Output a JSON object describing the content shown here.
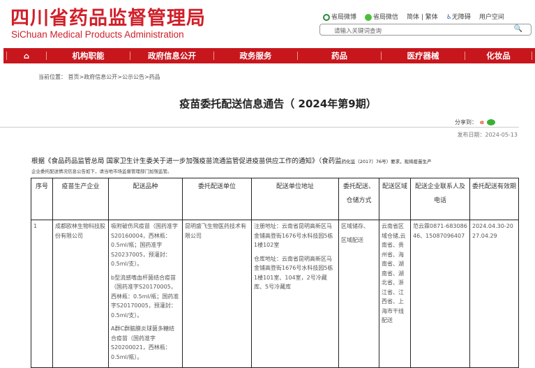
{
  "header": {
    "logo_cn": "四川省药品监督管理局",
    "logo_en": "SiChuan Medical Products Administration",
    "links": [
      "省局微博",
      "省局微信",
      "简体 | 繁体",
      "无障碍",
      "用户空间"
    ],
    "search_placeholder": "请输入关键词查询"
  },
  "nav": {
    "items": [
      "机构职能",
      "政府信息公开",
      "政务服务",
      "药品",
      "医疗器械",
      "化妆品"
    ]
  },
  "breadcrumb": "当前位置： 首页>政府信息公开>公示公告>药品",
  "article": {
    "title": "疫苗委托配送信息通告（ 2024年第9期）",
    "share_label": "分享到：",
    "date": "发布日期：2024-05-13",
    "intro_main": "根据《食品药品监管总局 国家卫生计生委关于进一步加强疫苗流通监管促进疫苗供应工作的通知》（食药监",
    "intro_small": "药化监（2017）76号）要求，现将疫苗生产",
    "intro_line2": "企业委托配送情况信息公告如下，请当地市场监督管理部门加强监管。"
  },
  "table": {
    "headers": [
      "序号",
      "疫苗生产企业",
      "配送品种",
      "委托配送单位",
      "配送单位地址",
      "委托配送、仓储方式",
      "配送区域",
      "配送企业联系人及电话",
      "委托配送有效期"
    ],
    "rows": [
      {
        "no": "1",
        "maker": "成都欧林生物科技股份有限公司",
        "varieties": [
          "吸附破伤风疫苗（国药准字S20160004，西林瓶：0.5ml/瓶；国药准字S20237005，预灌封：0.5ml/支）。",
          "b型流感嗜血杆菌结合疫苗（国药准字S20170005，西林瓶：0.5ml/瓶；国药准字S20170005，预灌封：0.5ml/支）。",
          "A群C群脑膜炎球菌多糖结合疫苗（国药准字S20200021，西林瓶：0.5ml/瓶）。"
        ],
        "unit": "昆明盛飞生物医药技术有限公司",
        "address": [
          "注册地址：云南省昆明高新区马金铺高登街1676号水科技园5栋1楼102室",
          "仓库地址：云南省昆明高新区马金铺高登街1676号水科技园5栋1楼101室、104室，2号冷藏库、5号冷藏库"
        ],
        "mode": [
          "区域储存、",
          "区域配送"
        ],
        "region": "云南省区域仓储,云南省、贵州省、海南省、湖南省、湖北省、浙江省、江西省、上海市干线配送",
        "contact": "范云霖0871-68308646、15087096407",
        "validity": "2024.04.30-2027.04.29"
      }
    ]
  },
  "colors": {
    "brand_red": "#c8161d"
  }
}
